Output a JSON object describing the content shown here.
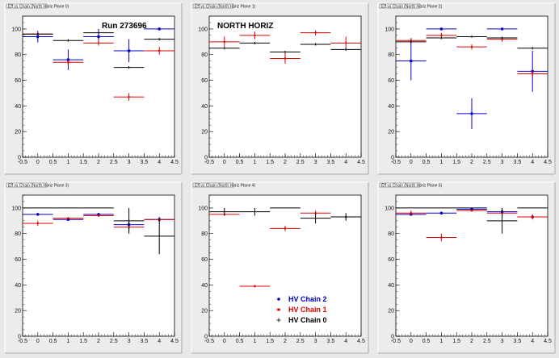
{
  "legend_colors": {
    "HV Chain 2": "#0000cc",
    "HV Chain 1": "#dd0000",
    "HV Chain 0": "#000000"
  },
  "chart_data": [
    {
      "type": "scatter",
      "title": "Eff vs Chain (North Horiz Plane 0)",
      "annotation": "Run 273696",
      "xlim": [
        -0.5,
        4.5
      ],
      "ylim": [
        0,
        110
      ],
      "x_ticks": [
        "-0.5",
        "0",
        "0.5",
        "1",
        "1.5",
        "2",
        "2.5",
        "3",
        "3.5",
        "4",
        "4.5"
      ],
      "y_ticks": [
        "0",
        "20",
        "40",
        "60",
        "80",
        "100"
      ],
      "series": [
        {
          "name": "HV Chain 2",
          "color": "#0000cc",
          "points": [
            [
              0,
              94,
              4.5
            ],
            [
              1,
              76,
              8
            ],
            [
              2,
              94,
              6
            ],
            [
              3,
              83,
              9
            ],
            [
              4,
              100,
              0
            ]
          ]
        },
        {
          "name": "HV Chain 1",
          "color": "#dd0000",
          "points": [
            [
              0,
              96,
              1
            ],
            [
              1,
              74,
              2
            ],
            [
              2,
              89,
              2
            ],
            [
              3,
              47,
              3
            ],
            [
              4,
              83,
              3
            ]
          ]
        },
        {
          "name": "HV Chain 0",
          "color": "#000000",
          "points": [
            [
              0,
              96,
              1
            ],
            [
              1,
              91,
              1
            ],
            [
              2,
              97,
              1
            ],
            [
              3,
              70,
              1
            ],
            [
              4,
              92,
              1
            ]
          ]
        }
      ]
    },
    {
      "type": "scatter",
      "title": "Eff vs Chain (North Horiz Plane 1)",
      "annotation": "NORTH HORIZ",
      "xlim": [
        -0.5,
        4.5
      ],
      "ylim": [
        0,
        110
      ],
      "x_ticks": [
        "-0.5",
        "0",
        "0.5",
        "1",
        "1.5",
        "2",
        "2.5",
        "3",
        "3.5",
        "4",
        "4.5"
      ],
      "y_ticks": [
        "0",
        "20",
        "40",
        "60",
        "80",
        "100"
      ],
      "series": [
        {
          "name": "HV Chain 2",
          "color": "#0000cc",
          "points": []
        },
        {
          "name": "HV Chain 1",
          "color": "#dd0000",
          "points": [
            [
              0,
              90,
              4
            ],
            [
              1,
              95,
              3
            ],
            [
              2,
              77,
              4
            ],
            [
              3,
              97,
              2
            ],
            [
              4,
              89,
              5
            ]
          ]
        },
        {
          "name": "HV Chain 0",
          "color": "#000000",
          "points": [
            [
              0,
              85,
              1
            ],
            [
              1,
              89,
              1
            ],
            [
              2,
              82,
              1
            ],
            [
              3,
              88,
              1
            ],
            [
              4,
              84,
              1
            ]
          ]
        }
      ]
    },
    {
      "type": "scatter",
      "title": "Eff vs Chain (North Horiz Plane 2)",
      "xlim": [
        -0.5,
        4.5
      ],
      "ylim": [
        0,
        110
      ],
      "x_ticks": [
        "-0.5",
        "0",
        "0.5",
        "1",
        "1.5",
        "2",
        "2.5",
        "3",
        "3.5",
        "4",
        "4.5"
      ],
      "y_ticks": [
        "0",
        "20",
        "40",
        "60",
        "80",
        "100"
      ],
      "series": [
        {
          "name": "HV Chain 2",
          "color": "#0000cc",
          "points": [
            [
              0,
              75,
              15
            ],
            [
              1,
              100,
              0
            ],
            [
              2,
              34,
              12
            ],
            [
              3,
              100,
              0
            ],
            [
              4,
              67,
              16
            ]
          ]
        },
        {
          "name": "HV Chain 1",
          "color": "#dd0000",
          "points": [
            [
              0,
              91,
              2
            ],
            [
              1,
              95,
              2
            ],
            [
              2,
              86,
              2
            ],
            [
              3,
              92,
              2
            ],
            [
              4,
              65,
              3
            ]
          ]
        },
        {
          "name": "HV Chain 0",
          "color": "#000000",
          "points": [
            [
              0,
              90,
              1
            ],
            [
              1,
              93,
              1
            ],
            [
              2,
              94,
              1
            ],
            [
              3,
              93,
              1
            ],
            [
              4,
              85,
              1
            ]
          ]
        }
      ]
    },
    {
      "type": "scatter",
      "title": "Eff vs Chain (North Horiz Plane 3)",
      "xlim": [
        -0.5,
        4.5
      ],
      "ylim": [
        0,
        110
      ],
      "x_ticks": [
        "-0.5",
        "0",
        "0.5",
        "1",
        "1.5",
        "2",
        "2.5",
        "3",
        "3.5",
        "4",
        "4.5"
      ],
      "y_ticks": [
        "0",
        "20",
        "40",
        "60",
        "80",
        "100"
      ],
      "series": [
        {
          "name": "HV Chain 2",
          "color": "#0000cc",
          "points": [
            [
              0,
              95,
              1
            ],
            [
              1,
              91,
              1
            ],
            [
              2,
              95,
              1
            ],
            [
              3,
              87,
              4
            ],
            [
              4,
              91,
              2
            ]
          ]
        },
        {
          "name": "HV Chain 1",
          "color": "#dd0000",
          "points": [
            [
              0,
              88,
              2
            ],
            [
              1,
              92,
              1
            ],
            [
              2,
              94,
              1
            ],
            [
              3,
              85,
              3
            ],
            [
              4,
              91,
              1
            ]
          ]
        },
        {
          "name": "HV Chain 0",
          "color": "#000000",
          "points": [
            [
              0,
              100,
              0
            ],
            [
              1,
              100,
              0
            ],
            [
              2,
              100,
              0
            ],
            [
              3,
              90,
              10
            ],
            [
              4,
              78,
              14
            ]
          ]
        }
      ]
    },
    {
      "type": "scatter",
      "title": "Eff vs Chain (North Horiz Plane 4)",
      "xlim": [
        -0.5,
        4.5
      ],
      "ylim": [
        0,
        110
      ],
      "x_ticks": [
        "-0.5",
        "0",
        "0.5",
        "1",
        "1.5",
        "2",
        "2.5",
        "3",
        "3.5",
        "4",
        "4.5"
      ],
      "y_ticks": [
        "0",
        "20",
        "40",
        "60",
        "80",
        "100"
      ],
      "legend": [
        "HV Chain 2",
        "HV Chain 1",
        "HV Chain 0"
      ],
      "series": [
        {
          "name": "HV Chain 2",
          "color": "#0000cc",
          "points": []
        },
        {
          "name": "HV Chain 1",
          "color": "#dd0000",
          "points": [
            [
              0,
              95,
              1
            ],
            [
              1,
              39,
              1
            ],
            [
              2,
              84,
              2
            ],
            [
              3,
              96,
              2
            ],
            [
              4,
              93,
              1
            ]
          ]
        },
        {
          "name": "HV Chain 0",
          "color": "#000000",
          "points": [
            [
              0,
              97,
              3
            ],
            [
              1,
              97,
              3
            ],
            [
              2,
              100,
              0
            ],
            [
              3,
              92,
              4
            ],
            [
              4,
              93,
              3
            ]
          ]
        }
      ]
    },
    {
      "type": "scatter",
      "title": "Eff vs Chain (North Horiz Plane 5)",
      "xlim": [
        -0.5,
        4.5
      ],
      "ylim": [
        0,
        110
      ],
      "x_ticks": [
        "-0.5",
        "0",
        "0.5",
        "1",
        "1.5",
        "2",
        "2.5",
        "3",
        "3.5",
        "4",
        "4.5"
      ],
      "y_ticks": [
        "0",
        "20",
        "40",
        "60",
        "80",
        "100"
      ],
      "series": [
        {
          "name": "HV Chain 2",
          "color": "#0000cc",
          "points": [
            [
              0,
              95,
              1
            ],
            [
              1,
              96,
              1
            ],
            [
              2,
              99,
              1
            ],
            [
              3,
              97,
              2
            ],
            [
              4,
              93,
              1
            ]
          ]
        },
        {
          "name": "HV Chain 1",
          "color": "#dd0000",
          "points": [
            [
              0,
              96,
              2
            ],
            [
              1,
              77,
              3
            ],
            [
              2,
              98,
              1
            ],
            [
              3,
              96,
              2
            ],
            [
              4,
              93,
              2
            ]
          ]
        },
        {
          "name": "HV Chain 0",
          "color": "#000000",
          "points": [
            [
              0,
              100,
              0
            ],
            [
              1,
              100,
              0
            ],
            [
              2,
              100,
              0
            ],
            [
              3,
              90,
              10
            ],
            [
              4,
              100,
              0
            ]
          ]
        }
      ]
    }
  ]
}
